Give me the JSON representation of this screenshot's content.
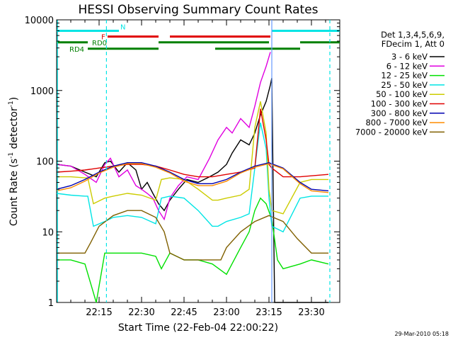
{
  "chart_data": {
    "type": "line",
    "title": "HESSI Observing Summary Count Rates",
    "xlabel": "Start Time (22-Feb-04 22:00:22)",
    "ylabel": "Count Rate (s⁻¹ detector⁻¹)",
    "ylabel_main": "Count Rate (s",
    "ylabel_mid": " detector",
    "ylabel_close": ")",
    "ylabel_sup": "-1",
    "yscale": "log",
    "ylim": [
      1,
      10000
    ],
    "xlim_minutes": [
      0,
      100
    ],
    "x_tick_labels": [
      "22:15",
      "22:30",
      "22:45",
      "23:00",
      "23:15",
      "23:30"
    ],
    "x_tick_minutes": [
      15,
      30,
      45,
      60,
      75,
      90
    ],
    "y_tick_labels": [
      "1",
      "10",
      "100",
      "1000",
      "10000"
    ],
    "y_tick_values": [
      1,
      10,
      100,
      1000,
      10000
    ],
    "grid": false,
    "timestamp": "29-Mar-2010 05:18",
    "legend": {
      "placement": "right",
      "header": [
        "Det 1,3,4,5,6,9,",
        "FDecim 1, Att 0"
      ]
    },
    "flag_bars": [
      {
        "label": "N",
        "color": "#00e5e5",
        "segments": [
          [
            0,
            22
          ],
          [
            76,
            100
          ]
        ],
        "y": 7000
      },
      {
        "label": "F",
        "color": "#e00000",
        "segments": [
          [
            18,
            36
          ],
          [
            40,
            75.5
          ]
        ],
        "y": 5800
      },
      {
        "label": "RD0",
        "color": "#008000",
        "segments": [
          [
            0,
            11
          ],
          [
            36,
            75
          ],
          [
            86,
            100
          ]
        ],
        "y": 4800
      },
      {
        "label": "RD4",
        "color": "#008000",
        "segments": [
          [
            11,
            36
          ],
          [
            56,
            86
          ]
        ],
        "y": 3900
      }
    ],
    "vlines": [
      {
        "x": 17.6,
        "color": "#00e5e5",
        "style": "dashed"
      },
      {
        "x": 96.5,
        "color": "#00e5e5",
        "style": "dashed"
      },
      {
        "x": 0.3,
        "color": "#00e5e5",
        "style": "solid"
      },
      {
        "x": 76,
        "color": "#6699ff",
        "style": "solid"
      }
    ],
    "series": [
      {
        "name": "3 - 6 keV",
        "color": "#000000",
        "x": [
          0,
          5,
          10,
          14,
          17,
          19,
          22,
          25,
          28,
          30,
          32,
          34,
          36,
          38,
          40,
          43,
          46,
          50,
          54,
          57,
          60,
          62,
          65,
          68,
          70,
          72,
          74,
          75.5,
          76,
          77,
          80,
          86,
          90,
          96
        ],
        "y": [
          90,
          85,
          70,
          60,
          95,
          100,
          70,
          95,
          75,
          40,
          50,
          35,
          25,
          20,
          28,
          40,
          55,
          50,
          60,
          70,
          90,
          130,
          200,
          170,
          250,
          450,
          700,
          1200,
          1500,
          1,
          1,
          1,
          1,
          1
        ]
      },
      {
        "name": "6 - 12 keV",
        "color": "#e000e0",
        "x": [
          0,
          5,
          10,
          14,
          17,
          19,
          22,
          25,
          28,
          30,
          32,
          34,
          36,
          38,
          40,
          43,
          46,
          50,
          54,
          57,
          60,
          62,
          65,
          68,
          70,
          72,
          74,
          75.5
        ],
        "y": [
          90,
          85,
          65,
          50,
          90,
          110,
          60,
          75,
          45,
          40,
          35,
          30,
          20,
          15,
          30,
          45,
          60,
          55,
          110,
          200,
          300,
          250,
          400,
          300,
          600,
          1300,
          2200,
          3500
        ]
      },
      {
        "name": "12 - 25 keV",
        "color": "#00e000",
        "x": [
          0,
          5,
          10,
          14,
          17,
          20,
          25,
          30,
          35,
          37,
          40,
          45,
          50,
          55,
          60,
          65,
          68,
          70,
          72,
          74,
          76,
          78,
          80,
          86,
          90,
          96
        ],
        "y": [
          4,
          4,
          3.5,
          1,
          5,
          5,
          5,
          5,
          4.5,
          3,
          5,
          4,
          4,
          3.5,
          2.5,
          6,
          10,
          20,
          30,
          25,
          15,
          4,
          3,
          3.5,
          4,
          3.5
        ]
      },
      {
        "name": "25 - 50 keV",
        "color": "#00e5e5",
        "x": [
          0,
          5,
          10,
          11,
          13,
          17,
          20,
          25,
          30,
          35,
          37,
          40,
          45,
          50,
          55,
          57,
          60,
          65,
          68,
          70,
          72,
          74,
          75,
          76,
          80,
          86,
          90,
          96
        ],
        "y": [
          35,
          33,
          32,
          32,
          12,
          14,
          16,
          17,
          16,
          13,
          30,
          32,
          30,
          20,
          12,
          12,
          14,
          16,
          18,
          80,
          350,
          150,
          30,
          12,
          10,
          30,
          32,
          32
        ]
      },
      {
        "name": "50 - 100 keV",
        "color": "#cccc00",
        "x": [
          0,
          5,
          10,
          11,
          13,
          17,
          20,
          25,
          30,
          35,
          37,
          40,
          45,
          50,
          55,
          57,
          60,
          65,
          68,
          70,
          72,
          74,
          75,
          76,
          80,
          86,
          90,
          96
        ],
        "y": [
          60,
          60,
          58,
          58,
          25,
          30,
          32,
          35,
          33,
          28,
          55,
          58,
          55,
          40,
          28,
          28,
          30,
          33,
          40,
          300,
          700,
          250,
          40,
          20,
          18,
          50,
          55,
          55
        ]
      },
      {
        "name": "100 - 300 keV",
        "color": "#e00000",
        "x": [
          0,
          5,
          10,
          15,
          20,
          25,
          30,
          35,
          40,
          45,
          50,
          55,
          60,
          65,
          70,
          72,
          74,
          75,
          76,
          80,
          86,
          90,
          96
        ],
        "y": [
          70,
          72,
          75,
          80,
          85,
          90,
          90,
          85,
          75,
          65,
          60,
          60,
          65,
          70,
          80,
          550,
          200,
          90,
          80,
          60,
          60,
          62,
          65
        ]
      },
      {
        "name": "300 - 800 keV",
        "color": "#0000b0",
        "x": [
          0,
          5,
          10,
          15,
          20,
          25,
          30,
          35,
          40,
          45,
          50,
          55,
          60,
          65,
          70,
          75,
          80,
          86,
          90,
          96
        ],
        "y": [
          40,
          45,
          55,
          70,
          85,
          95,
          95,
          85,
          70,
          55,
          48,
          48,
          55,
          70,
          85,
          95,
          80,
          50,
          40,
          38
        ]
      },
      {
        "name": "800 - 7000 keV",
        "color": "#ff8c00",
        "x": [
          0,
          5,
          10,
          15,
          20,
          25,
          30,
          35,
          40,
          45,
          50,
          55,
          60,
          65,
          70,
          75,
          80,
          86,
          90,
          96
        ],
        "y": [
          38,
          42,
          52,
          68,
          82,
          92,
          92,
          82,
          68,
          52,
          45,
          45,
          52,
          68,
          82,
          92,
          78,
          48,
          38,
          36
        ]
      },
      {
        "name": "7000 - 20000 keV",
        "color": "#806000",
        "x": [
          0,
          5,
          10,
          12,
          15,
          20,
          25,
          30,
          35,
          38,
          40,
          45,
          50,
          55,
          58,
          60,
          65,
          70,
          75,
          80,
          85,
          90,
          96
        ],
        "y": [
          5,
          5,
          5,
          7,
          12,
          17,
          20,
          20,
          16,
          10,
          5,
          4,
          4,
          4,
          4,
          6,
          10,
          14,
          17,
          14,
          8,
          5,
          5
        ]
      }
    ]
  }
}
